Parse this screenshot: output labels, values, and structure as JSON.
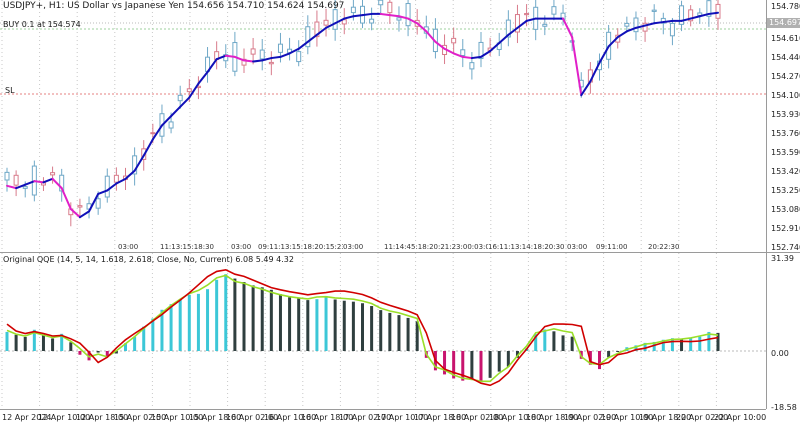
{
  "chart_header": {
    "symbol_line": "USDJPY+, H1:  US Dollar vs Japanese Yen  154.656 154.710 154.624 154.697",
    "order_line": "BUY 0.1 at 154.574",
    "sl_label": "SL",
    "current_price": "154.697"
  },
  "indicator_header": {
    "title": "Original QQE (14, 5, 14, 1.618, 2.618, Close, No, Current) 6.08 5.49 4.32"
  },
  "price_axis": {
    "ticks": [
      "154.780",
      "154.610",
      "154.440",
      "154.270",
      "154.100",
      "153.930",
      "153.760",
      "153.590",
      "153.420",
      "153.250",
      "153.080",
      "152.910",
      "152.740"
    ]
  },
  "indicator_axis": {
    "ticks": [
      "31.39",
      "0.00",
      "-18.58"
    ]
  },
  "time_axis": {
    "labels": [
      "12 Apr 2024",
      "12 Apr 10:00",
      "12 Apr 18:00",
      "15 Apr 02:00",
      "15 Apr 10:00",
      "15 Apr 18:00",
      "16 Apr 02:00",
      "16 Apr 10:00",
      "16 Apr 18:00",
      "17 Apr 02:00",
      "17 Apr 10:00",
      "17 Apr 18:00",
      "18 Apr 02:00",
      "18 Apr 10:00",
      "18 Apr 18:00",
      "19 Apr 02:00",
      "19 Apr 10:00",
      "19 Apr 18:00",
      "22 Apr 02:00",
      "22 Apr 10:00"
    ]
  },
  "session_labels": [
    {
      "text": "03:00"
    },
    {
      "text": "11:13:15:18:30"
    },
    {
      "text": "03:00"
    },
    {
      "text": "09:11:13:15:18:20:15:23:00"
    },
    {
      "text": "03:00"
    },
    {
      "text": "11:14:45:18:20:21:23:00:03:00"
    },
    {
      "text": "16:11:13:14:18:20:30"
    },
    {
      "text": "03:00"
    },
    {
      "text": "09:11:00"
    },
    {
      "text": "20:22:30"
    }
  ],
  "colors": {
    "bull_candle": "#6fa8c7",
    "bear_candle": "#d87b8b",
    "ma_up": "#1010b8",
    "ma_down": "#e020c8",
    "qqe_cyan": "#3cc7d7",
    "qqe_gray": "#2f3f3f",
    "qqe_magenta": "#c8146e",
    "qqe_red": "#d00000",
    "qqe_green": "#9adf2a"
  },
  "chart_data": [
    {
      "type": "candlestick",
      "title": "USDJPY+, H1",
      "ylim": [
        152.65,
        154.82
      ],
      "ma_line": [
        153.22,
        153.2,
        153.23,
        153.26,
        153.25,
        153.28,
        153.2,
        153.02,
        152.95,
        153.0,
        153.15,
        153.18,
        153.24,
        153.28,
        153.35,
        153.48,
        153.62,
        153.74,
        153.82,
        153.9,
        153.98,
        154.1,
        154.2,
        154.31,
        154.34,
        154.33,
        154.3,
        154.29,
        154.3,
        154.32,
        154.33,
        154.36,
        154.4,
        154.46,
        154.52,
        154.58,
        154.62,
        154.66,
        154.68,
        154.69,
        154.7,
        154.7,
        154.69,
        154.68,
        154.66,
        154.62,
        154.55,
        154.46,
        154.4,
        154.36,
        154.33,
        154.32,
        154.33,
        154.38,
        154.45,
        154.52,
        154.58,
        154.64,
        154.66,
        154.66,
        154.66,
        154.66,
        154.5,
        154.0,
        154.12,
        154.28,
        154.42,
        154.5,
        154.55,
        154.58,
        154.6,
        154.62,
        154.63,
        154.64,
        154.64,
        154.66,
        154.68,
        154.7,
        154.71
      ]
    },
    {
      "type": "bar",
      "title": "Original QQE (14, 5, 14, 1.618, 2.618, Close, No, Current)",
      "ylim": [
        -18.58,
        31.39
      ],
      "values": [
        6.1,
        5.2,
        4.5,
        6.8,
        5.3,
        4.0,
        5.5,
        2.8,
        -1.2,
        -3.0,
        -0.5,
        -1.8,
        -0.8,
        2.5,
        4.6,
        7.8,
        10.4,
        13.2,
        15.0,
        16.5,
        18.0,
        18.3,
        19.8,
        22.8,
        24.6,
        23.2,
        22.1,
        21.0,
        20.4,
        19.6,
        18.2,
        17.2,
        16.8,
        16.3,
        16.6,
        17.6,
        16.5,
        16.1,
        15.8,
        15.3,
        14.4,
        13.1,
        12.2,
        11.5,
        10.6,
        9.5,
        -2.2,
        -6.2,
        -7.5,
        -8.8,
        -9.5,
        -9.3,
        -9.5,
        -8.6,
        -6.6,
        -5.0,
        -2.2,
        0.8,
        5.4,
        6.9,
        6.3,
        5.0,
        4.6,
        -2.5,
        -4.4,
        -5.8,
        -2.0,
        -0.3,
        1.2,
        1.8,
        2.6,
        2.9,
        3.6,
        4.1,
        4.0,
        4.2,
        4.6,
        6.1,
        5.8
      ],
      "red_line": [
        8.6,
        6.4,
        5.6,
        6.2,
        5.6,
        4.8,
        5.0,
        3.9,
        2.5,
        -0.4,
        -3.7,
        -2.0,
        1.0,
        3.6,
        5.6,
        7.5,
        9.6,
        11.7,
        14.1,
        16.3,
        18.6,
        21.2,
        23.8,
        25.5,
        26.0,
        24.6,
        23.9,
        22.7,
        21.5,
        20.3,
        19.6,
        19.0,
        18.5,
        18.0,
        18.4,
        18.7,
        19.2,
        19.2,
        18.7,
        18.1,
        17.0,
        15.6,
        14.6,
        13.7,
        12.8,
        11.6,
        5.8,
        -3.0,
        -5.8,
        -6.9,
        -7.8,
        -8.8,
        -10.3,
        -11.0,
        -9.6,
        -7.0,
        -2.9,
        0.6,
        4.5,
        7.8,
        8.6,
        8.6,
        8.5,
        7.9,
        -3.4,
        -4.4,
        -3.7,
        -1.2,
        -0.6,
        0.4,
        0.9,
        1.8,
        2.7,
        3.0,
        3.1,
        3.0,
        3.2,
        3.8,
        4.3
      ],
      "green_line": [
        6.6,
        5.4,
        4.8,
        5.9,
        5.1,
        4.3,
        4.8,
        3.1,
        0.8,
        -1.9,
        -1.0,
        -1.9,
        0.1,
        2.3,
        4.6,
        7.2,
        9.8,
        12.3,
        14.6,
        16.6,
        18.4,
        19.4,
        21.1,
        23.4,
        24.2,
        22.3,
        21.7,
        20.6,
        19.8,
        18.8,
        18.0,
        17.4,
        17.0,
        16.7,
        17.3,
        17.4,
        17.0,
        16.8,
        16.6,
        16.0,
        15.2,
        13.7,
        12.8,
        12.2,
        11.3,
        10.4,
        -1.0,
        -5.1,
        -6.1,
        -7.7,
        -8.7,
        -9.1,
        -9.7,
        -9.7,
        -7.1,
        -5.1,
        -1.5,
        1.6,
        5.8,
        6.4,
        7.1,
        6.4,
        5.9,
        -1.8,
        -4.0,
        -4.3,
        -2.1,
        -0.8,
        0.5,
        1.3,
        2.2,
        2.5,
        3.2,
        3.7,
        3.8,
        4.2,
        4.8,
        5.4,
        5.1
      ]
    }
  ]
}
